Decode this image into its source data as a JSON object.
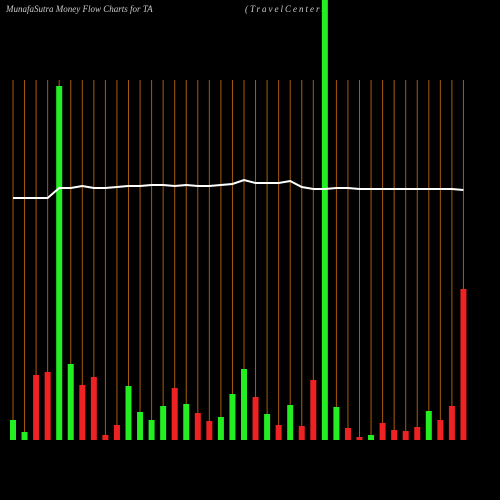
{
  "chart_data": {
    "type": "bar",
    "title": "MunafaSutra  Money Flow  Charts for TA",
    "subtitle": "(TravelCenters",
    "categories": [
      null,
      null,
      null,
      null,
      null,
      null,
      null,
      null,
      null,
      null,
      null,
      null,
      null,
      null,
      null,
      null,
      null,
      null,
      null,
      null,
      null,
      null,
      null,
      null,
      null,
      null,
      null,
      null,
      null,
      null,
      null,
      null,
      null,
      null,
      null,
      null,
      null,
      null,
      null,
      null
    ],
    "values": [
      20,
      8,
      65,
      68,
      354,
      76,
      55,
      63,
      5,
      15,
      54,
      28,
      20,
      34,
      52,
      36,
      27,
      19,
      23,
      46,
      71,
      43,
      26,
      15,
      35,
      14,
      60,
      440,
      33,
      12,
      3,
      5,
      17,
      10,
      9,
      13,
      29,
      20,
      34,
      151
    ],
    "colors": [
      "#22ee22",
      "#22ee22",
      "#ee2222",
      "#ee2222",
      "#22ee22",
      "#22ee22",
      "#ee2222",
      "#ee2222",
      "#ee2222",
      "#ee2222",
      "#22ee22",
      "#22ee22",
      "#22ee22",
      "#22ee22",
      "#ee2222",
      "#22ee22",
      "#ee2222",
      "#ee2222",
      "#22ee22",
      "#22ee22",
      "#22ee22",
      "#ee2222",
      "#22ee22",
      "#ee2222",
      "#22ee22",
      "#ee2222",
      "#ee2222",
      "#22ee22",
      "#22ee22",
      "#ee2222",
      "#ee2222",
      "#22ee22",
      "#ee2222",
      "#ee2222",
      "#ee2222",
      "#ee2222",
      "#22ee22",
      "#ee2222",
      "#ee2222",
      "#ee2222"
    ],
    "line_values": [
      242,
      242,
      242,
      242,
      252,
      252,
      254,
      252,
      252,
      253,
      254,
      254,
      255,
      255,
      254,
      255,
      254,
      254,
      255,
      256,
      260,
      257,
      257,
      257,
      259,
      253,
      251,
      251,
      252,
      252,
      251,
      251,
      251,
      251,
      251,
      251,
      251,
      251,
      251,
      250
    ],
    "line_color": "#ffffff",
    "grid_color": "#a85a0c",
    "ylim": [
      0,
      440
    ]
  }
}
